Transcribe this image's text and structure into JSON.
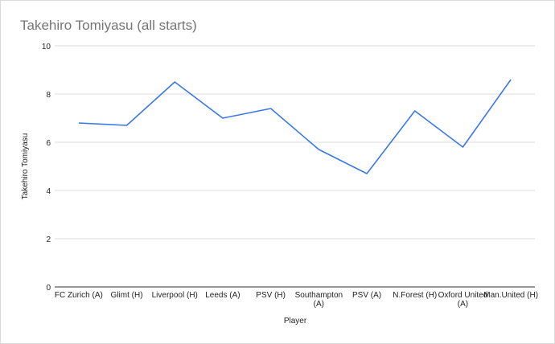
{
  "chart_data": {
    "type": "line",
    "title": "Takehiro Tomiyasu (all starts)",
    "x_label": "Player",
    "y_label": "Takehiro Tomiyasu",
    "categories": [
      "FC Zurich (A)",
      "Glimt (H)",
      "Liverpool (H)",
      "Leeds (A)",
      "PSV (H)",
      "Southampton (A)",
      "PSV (A)",
      "N.Forest (H)",
      "Oxford United (A)",
      "Man.United (H)"
    ],
    "series": [
      {
        "name": "Takehiro Tomiyasu",
        "color": "#3b78e7",
        "values": [
          6.8,
          6.7,
          8.5,
          7.0,
          7.4,
          5.7,
          4.7,
          7.3,
          5.8,
          8.6
        ]
      }
    ],
    "ylim": [
      0,
      10
    ],
    "yticks": [
      0,
      2,
      4,
      6,
      8,
      10
    ],
    "grid": true
  }
}
